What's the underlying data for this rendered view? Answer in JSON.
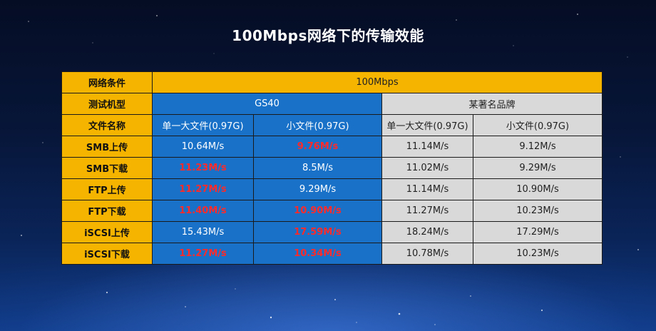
{
  "title": "100Mbps网络下的传输效能",
  "colors": {
    "label_bg": "#f5b400",
    "gs40_bg": "#1a72c8",
    "brand_bg": "#d9d9d9",
    "highlight": "#ff2a2a"
  },
  "table": {
    "network_label": "网络条件",
    "network_value": "100Mbps",
    "model_label": "测试机型",
    "model_gs40": "GS40",
    "model_brand": "某著名品牌",
    "file_label": "文件名称",
    "file_columns": [
      "单一大文件(0.97G)",
      "小文件(0.97G)",
      "单一大文件(0.97G)",
      "小文件(0.97G)"
    ],
    "rows": [
      {
        "label": "SMB上传",
        "values": [
          "10.64M/s",
          "9.76M/s",
          "11.14M/s",
          "9.12M/s"
        ],
        "highlight": [
          false,
          true,
          false,
          false
        ]
      },
      {
        "label": "SMB下载",
        "values": [
          "11.23M/s",
          "8.5M/s",
          "11.02M/s",
          "9.29M/s"
        ],
        "highlight": [
          true,
          false,
          false,
          false
        ]
      },
      {
        "label": "FTP上传",
        "values": [
          "11.27M/s",
          "9.29M/s",
          "11.14M/s",
          "10.90M/s"
        ],
        "highlight": [
          true,
          false,
          false,
          false
        ]
      },
      {
        "label": "FTP下载",
        "values": [
          "11.40M/s",
          "10.90M/s",
          "11.27M/s",
          "10.23M/s"
        ],
        "highlight": [
          true,
          true,
          false,
          false
        ]
      },
      {
        "label": "iSCSI上传",
        "values": [
          "15.43M/s",
          "17.59M/s",
          "18.24M/s",
          "17.29M/s"
        ],
        "highlight": [
          false,
          true,
          false,
          false
        ]
      },
      {
        "label": "iSCSI下载",
        "values": [
          "11.27M/s",
          "10.34M/s",
          "10.78M/s",
          "10.23M/s"
        ],
        "highlight": [
          true,
          true,
          false,
          false
        ]
      }
    ]
  }
}
